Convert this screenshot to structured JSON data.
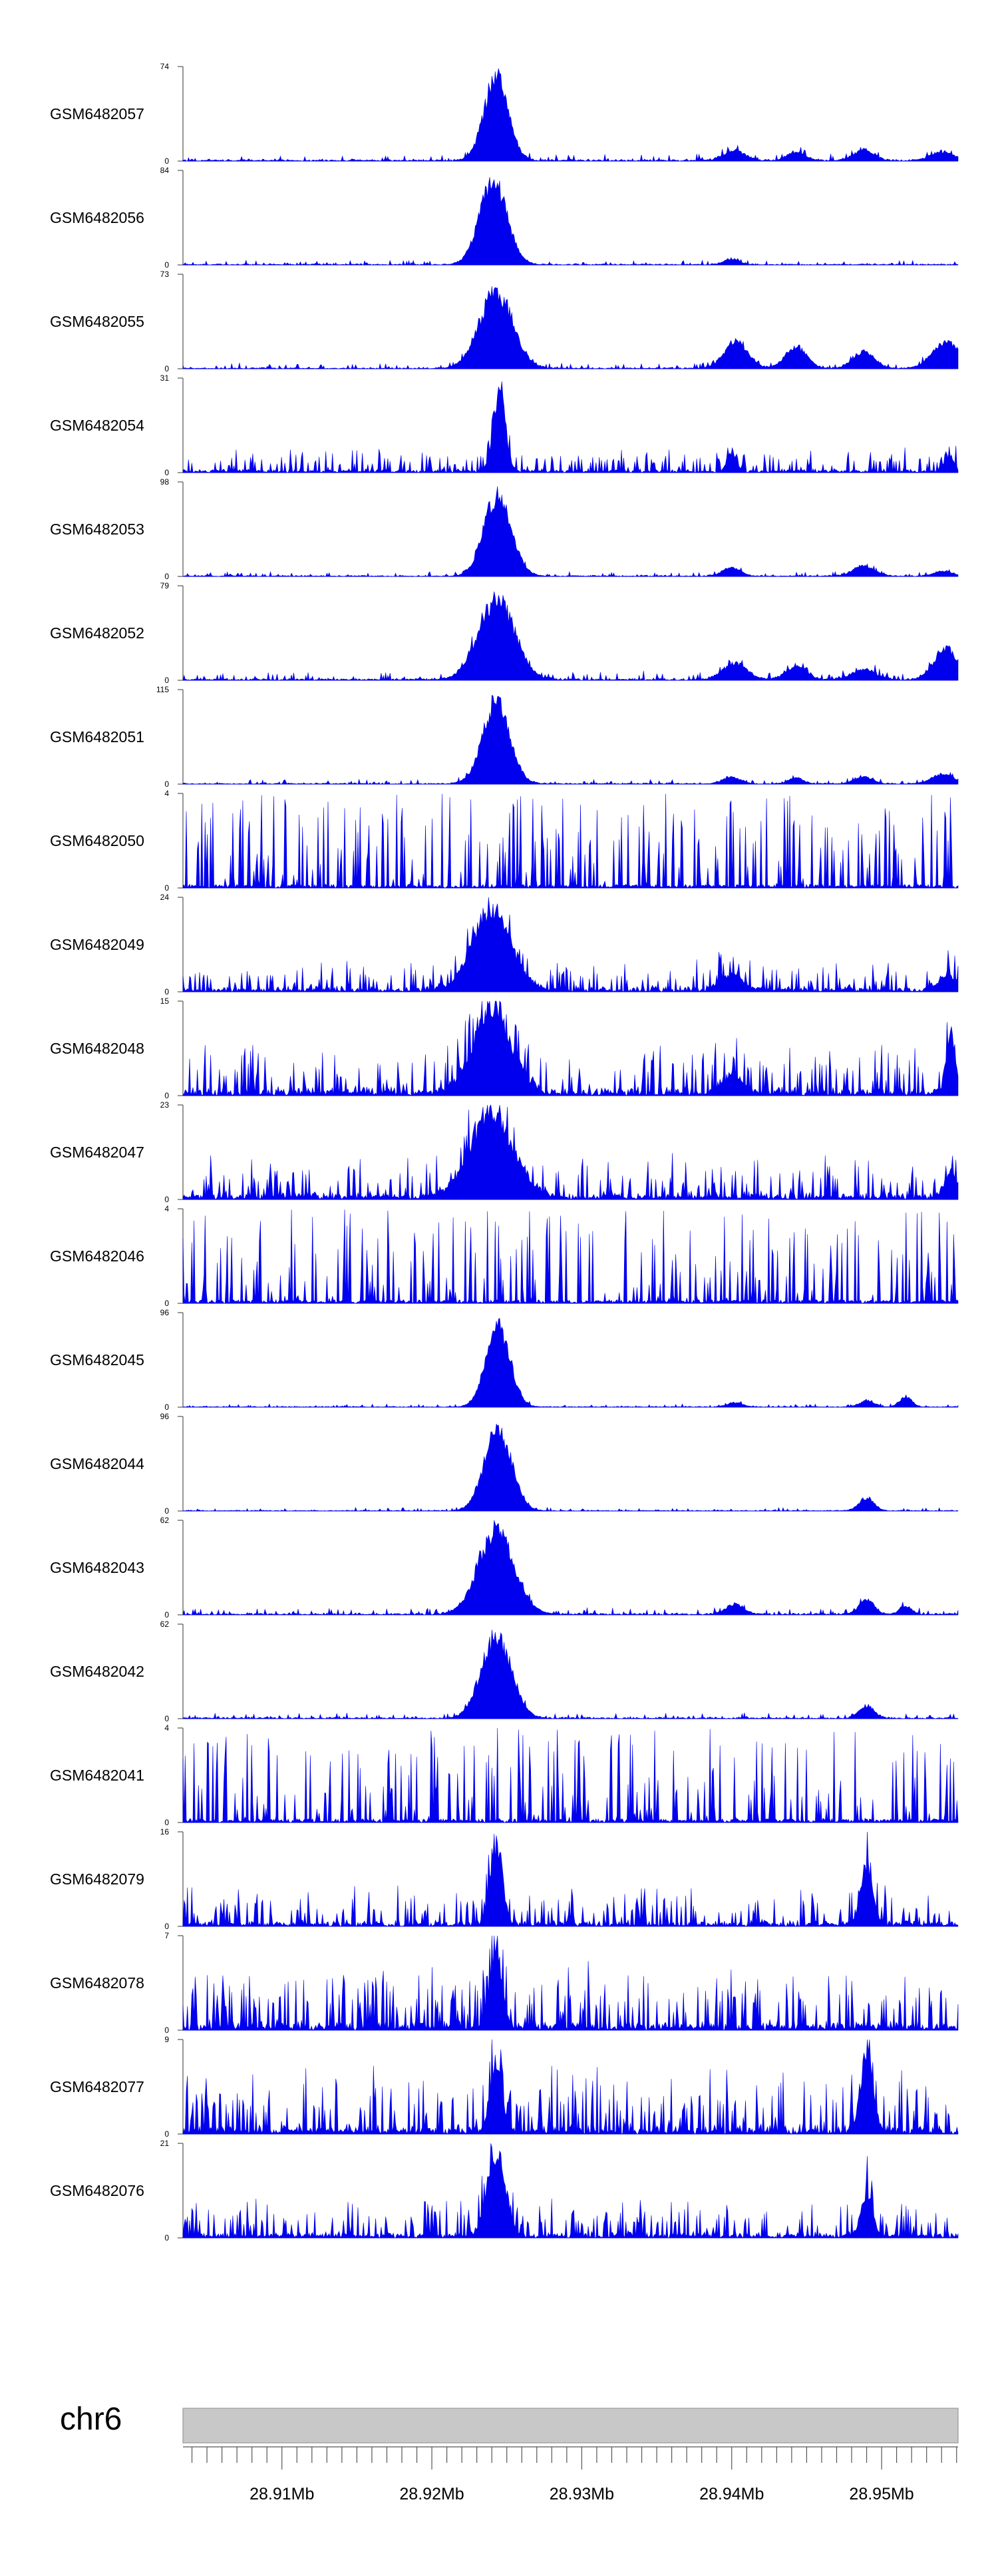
{
  "chart_data": {
    "type": "area",
    "chromosome": "chr6",
    "x_unit": "Mb",
    "xlim": [
      28.9034,
      28.9551
    ],
    "x_ticks": [
      28.91,
      28.92,
      28.93,
      28.94,
      28.95
    ],
    "x_tick_labels": [
      "28.91Mb",
      "28.92Mb",
      "28.93Mb",
      "28.94Mb",
      "28.95Mb"
    ],
    "axis_color": "#555555",
    "signal_color": "#0000ee",
    "ideogram_color": "#c8c8c8",
    "tracks": [
      {
        "name": "GSM6482057",
        "ymax": 74,
        "ymax_label": "74",
        "ymin_label": "0",
        "noise": 0.06,
        "spikiness": 0.2,
        "peaks": [
          {
            "x": 28.9243,
            "h": 1.0,
            "w": 0.0008
          },
          {
            "x": 28.9402,
            "h": 0.12,
            "w": 0.0007
          },
          {
            "x": 28.9443,
            "h": 0.1,
            "w": 0.0006
          },
          {
            "x": 28.9488,
            "h": 0.12,
            "w": 0.0007
          },
          {
            "x": 28.9541,
            "h": 0.1,
            "w": 0.0008
          }
        ]
      },
      {
        "name": "GSM6482056",
        "ymax": 84,
        "ymax_label": "84",
        "ymin_label": "0",
        "noise": 0.04,
        "spikiness": 0.15,
        "peaks": [
          {
            "x": 28.9241,
            "h": 1.0,
            "w": 0.0009
          },
          {
            "x": 28.94,
            "h": 0.07,
            "w": 0.0005
          }
        ]
      },
      {
        "name": "GSM6482055",
        "ymax": 73,
        "ymax_label": "73",
        "ymin_label": "0",
        "noise": 0.05,
        "spikiness": 0.2,
        "peaks": [
          {
            "x": 28.9243,
            "h": 0.92,
            "w": 0.0011
          },
          {
            "x": 28.9403,
            "h": 0.32,
            "w": 0.0008
          },
          {
            "x": 28.9443,
            "h": 0.26,
            "w": 0.0007
          },
          {
            "x": 28.9488,
            "h": 0.2,
            "w": 0.0007
          },
          {
            "x": 28.9543,
            "h": 0.32,
            "w": 0.0009
          }
        ]
      },
      {
        "name": "GSM6482054",
        "ymax": 31,
        "ymax_label": "31",
        "ymin_label": "0",
        "noise": 0.12,
        "spikiness": 0.9,
        "peaks": [
          {
            "x": 28.9245,
            "h": 0.95,
            "w": 0.0004
          },
          {
            "x": 28.94,
            "h": 0.22,
            "w": 0.0003
          },
          {
            "x": 28.9545,
            "h": 0.2,
            "w": 0.0003
          }
        ]
      },
      {
        "name": "GSM6482053",
        "ymax": 98,
        "ymax_label": "98",
        "ymin_label": "0",
        "noise": 0.04,
        "spikiness": 0.2,
        "peaks": [
          {
            "x": 28.9244,
            "h": 0.98,
            "w": 0.0009
          },
          {
            "x": 28.94,
            "h": 0.1,
            "w": 0.0006
          },
          {
            "x": 28.9488,
            "h": 0.12,
            "w": 0.0007
          },
          {
            "x": 28.9541,
            "h": 0.06,
            "w": 0.0006
          }
        ]
      },
      {
        "name": "GSM6482052",
        "ymax": 79,
        "ymax_label": "79",
        "ymin_label": "0",
        "noise": 0.07,
        "spikiness": 0.3,
        "peaks": [
          {
            "x": 28.9243,
            "h": 0.97,
            "w": 0.0012
          },
          {
            "x": 28.9402,
            "h": 0.2,
            "w": 0.0008
          },
          {
            "x": 28.9443,
            "h": 0.16,
            "w": 0.0007
          },
          {
            "x": 28.9488,
            "h": 0.12,
            "w": 0.0008
          },
          {
            "x": 28.9543,
            "h": 0.36,
            "w": 0.0008
          }
        ]
      },
      {
        "name": "GSM6482051",
        "ymax": 115,
        "ymax_label": "115",
        "ymin_label": "0",
        "noise": 0.04,
        "spikiness": 0.2,
        "peaks": [
          {
            "x": 28.9243,
            "h": 0.97,
            "w": 0.0009
          },
          {
            "x": 28.94,
            "h": 0.08,
            "w": 0.0006
          },
          {
            "x": 28.9443,
            "h": 0.07,
            "w": 0.0005
          },
          {
            "x": 28.9488,
            "h": 0.08,
            "w": 0.0006
          },
          {
            "x": 28.9541,
            "h": 0.12,
            "w": 0.0007
          }
        ]
      },
      {
        "name": "GSM6482050",
        "ymax": 4,
        "ymax_label": "4",
        "ymin_label": "0",
        "noise": 0.05,
        "spikiness": 1.0,
        "spiky": true,
        "peaks": []
      },
      {
        "name": "GSM6482049",
        "ymax": 24,
        "ymax_label": "24",
        "ymin_label": "0",
        "noise": 0.18,
        "spikiness": 0.6,
        "peaks": [
          {
            "x": 28.924,
            "h": 0.95,
            "w": 0.0013
          },
          {
            "x": 28.94,
            "h": 0.2,
            "w": 0.0007
          },
          {
            "x": 28.9545,
            "h": 0.18,
            "w": 0.0007
          }
        ]
      },
      {
        "name": "GSM6482048",
        "ymax": 15,
        "ymax_label": "15",
        "ymin_label": "0",
        "noise": 0.28,
        "spikiness": 0.7,
        "peaks": [
          {
            "x": 28.924,
            "h": 0.95,
            "w": 0.0013
          },
          {
            "x": 28.94,
            "h": 0.2,
            "w": 0.0007
          },
          {
            "x": 28.9546,
            "h": 0.75,
            "w": 0.0003
          }
        ]
      },
      {
        "name": "GSM6482047",
        "ymax": 23,
        "ymax_label": "23",
        "ymin_label": "0",
        "noise": 0.24,
        "spikiness": 0.7,
        "peaks": [
          {
            "x": 28.924,
            "h": 0.95,
            "w": 0.0015
          },
          {
            "x": 28.9546,
            "h": 0.3,
            "w": 0.0004
          }
        ]
      },
      {
        "name": "GSM6482046",
        "ymax": 4,
        "ymax_label": "4",
        "ymin_label": "0",
        "noise": 0.05,
        "spikiness": 1.0,
        "spiky": true,
        "peaks": []
      },
      {
        "name": "GSM6482045",
        "ymax": 96,
        "ymax_label": "96",
        "ymin_label": "0",
        "noise": 0.03,
        "spikiness": 0.2,
        "peaks": [
          {
            "x": 28.9244,
            "h": 0.98,
            "w": 0.0008
          },
          {
            "x": 28.9402,
            "h": 0.05,
            "w": 0.0005
          },
          {
            "x": 28.949,
            "h": 0.07,
            "w": 0.0005
          },
          {
            "x": 28.9516,
            "h": 0.12,
            "w": 0.0004
          }
        ]
      },
      {
        "name": "GSM6482044",
        "ymax": 96,
        "ymax_label": "96",
        "ymin_label": "0",
        "noise": 0.03,
        "spikiness": 0.2,
        "peaks": [
          {
            "x": 28.9244,
            "h": 0.98,
            "w": 0.0009
          },
          {
            "x": 28.949,
            "h": 0.15,
            "w": 0.0005
          }
        ]
      },
      {
        "name": "GSM6482043",
        "ymax": 62,
        "ymax_label": "62",
        "ymin_label": "0",
        "noise": 0.06,
        "spikiness": 0.2,
        "peaks": [
          {
            "x": 28.9243,
            "h": 0.98,
            "w": 0.0012
          },
          {
            "x": 28.9402,
            "h": 0.12,
            "w": 0.0006
          },
          {
            "x": 28.949,
            "h": 0.18,
            "w": 0.0005
          },
          {
            "x": 28.9516,
            "h": 0.1,
            "w": 0.0004
          }
        ]
      },
      {
        "name": "GSM6482042",
        "ymax": 62,
        "ymax_label": "62",
        "ymin_label": "0",
        "noise": 0.05,
        "spikiness": 0.2,
        "peaks": [
          {
            "x": 28.9243,
            "h": 0.98,
            "w": 0.001
          },
          {
            "x": 28.949,
            "h": 0.15,
            "w": 0.0005
          }
        ]
      },
      {
        "name": "GSM6482041",
        "ymax": 4,
        "ymax_label": "4",
        "ymin_label": "0",
        "noise": 0.05,
        "spikiness": 1.0,
        "spiky": true,
        "peaks": []
      },
      {
        "name": "GSM6482079",
        "ymax": 16,
        "ymax_label": "16",
        "ymin_label": "0",
        "noise": 0.2,
        "spikiness": 0.8,
        "peaks": [
          {
            "x": 28.9243,
            "h": 0.95,
            "w": 0.0004
          },
          {
            "x": 28.949,
            "h": 0.7,
            "w": 0.0004
          }
        ]
      },
      {
        "name": "GSM6482078",
        "ymax": 7,
        "ymax_label": "7",
        "ymin_label": "0",
        "noise": 0.3,
        "spikiness": 1.0,
        "peaks": [
          {
            "x": 28.9243,
            "h": 0.9,
            "w": 0.0004
          }
        ]
      },
      {
        "name": "GSM6482077",
        "ymax": 9,
        "ymax_label": "9",
        "ymin_label": "0",
        "noise": 0.3,
        "spikiness": 1.0,
        "peaks": [
          {
            "x": 28.9243,
            "h": 0.75,
            "w": 0.0004
          },
          {
            "x": 28.949,
            "h": 0.95,
            "w": 0.0004
          }
        ]
      },
      {
        "name": "GSM6482076",
        "ymax": 21,
        "ymax_label": "21",
        "ymin_label": "0",
        "noise": 0.2,
        "spikiness": 0.8,
        "peaks": [
          {
            "x": 28.9243,
            "h": 0.98,
            "w": 0.0006
          },
          {
            "x": 28.949,
            "h": 0.5,
            "w": 0.0004
          }
        ]
      }
    ]
  }
}
